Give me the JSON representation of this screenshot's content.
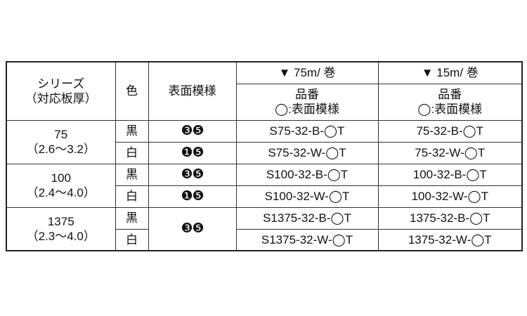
{
  "header": {
    "series_line1": "シリーズ",
    "series_line2": "（対応板厚）",
    "color": "色",
    "pattern": "表面模様",
    "col75": "▼ 75m/ 巻",
    "col15": "▼ 15m/ 巻",
    "part_line1": "品番",
    "part_line2": "◯:表面模様"
  },
  "groups": [
    {
      "series": "75",
      "range": "（2.6～3.2）",
      "rows": [
        {
          "color": "黒",
          "pattern": "❸❺",
          "p75": "S75-32-B-◯T",
          "p15": "75-32-B-◯T"
        },
        {
          "color": "白",
          "pattern": "❶❺",
          "p75": "S75-32-W-◯T",
          "p15": "75-32-W-◯T"
        }
      ]
    },
    {
      "series": "100",
      "range": "（2.4～4.0）",
      "rows": [
        {
          "color": "黒",
          "pattern": "❸❺",
          "p75": "S100-32-B-◯T",
          "p15": "100-32-B-◯T"
        },
        {
          "color": "白",
          "pattern": "❶❺",
          "p75": "S100-32-W-◯T",
          "p15": "100-32-W-◯T"
        }
      ]
    },
    {
      "series": "1375",
      "range": "（2.3～4.0）",
      "pattern": "❸❺",
      "rows": [
        {
          "color": "黒",
          "p75": "S1375-32-B-◯T",
          "p15": "1375-32-B-◯T"
        },
        {
          "color": "白",
          "p75": "S1375-32-W-◯T",
          "p15": "1375-32-W-◯T"
        }
      ]
    }
  ]
}
